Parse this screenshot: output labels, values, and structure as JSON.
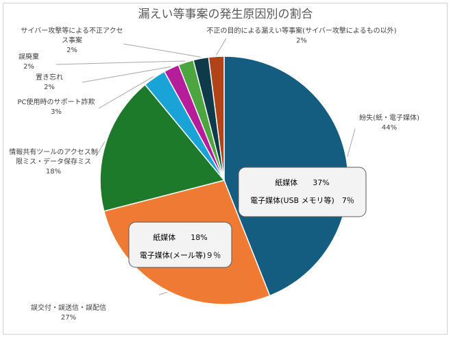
{
  "chart_data": {
    "type": "pie",
    "title": "漏えい等事案の発生原因別の割合",
    "slices": [
      {
        "label": "紛失(紙・電子媒体)",
        "value": 44,
        "value_label": "44%",
        "color": "#155d80"
      },
      {
        "label": "誤交付・誤送信・誤配信",
        "value": 27,
        "value_label": "27%",
        "color": "#ef7a33"
      },
      {
        "label": "情報共有ツールのアクセス制限ミス・データ保存ミス",
        "value": 18,
        "value_label": "18%",
        "color": "#1d7a2a"
      },
      {
        "label": "PC使用時のサポート詐欺",
        "value": 3,
        "value_label": "3%",
        "color": "#1aa3d6"
      },
      {
        "label": "置き忘れ",
        "value": 2,
        "value_label": "2%",
        "color": "#b51d9a"
      },
      {
        "label": "誤廃棄",
        "value": 2,
        "value_label": "2%",
        "color": "#4ca53e"
      },
      {
        "label": "サイバー攻撃等による不正アクセス事案",
        "value": 2,
        "value_label": "2%",
        "color": "#0e3a4a"
      },
      {
        "label": "不正の目的による漏えい等事案(サイバー攻撃によるもの以外)",
        "value": 2,
        "value_label": "2%",
        "color": "#b04318"
      }
    ],
    "callouts": [
      {
        "slice": 0,
        "lines": [
          "紙媒体　　37%",
          "電子媒体(USB メモリ等)　7％"
        ]
      },
      {
        "slice": 1,
        "lines": [
          "紙媒体　　18%",
          "電子媒体(メール等)９％"
        ]
      }
    ],
    "label_lines": [
      [
        "紛失(紙・電子媒体)",
        "44%"
      ],
      [
        "誤交付・誤送信・誤配信",
        "27%"
      ],
      [
        "情報共有ツールのアクセス制",
        "限ミス・データ保存ミス",
        "18%"
      ],
      [
        "PC使用時のサポート詐欺",
        "3%"
      ],
      [
        "置き忘れ",
        "2%"
      ],
      [
        "誤廃棄",
        "2%"
      ],
      [
        "サイバー攻撃等による不正アクセ",
        "ス事案",
        "2%"
      ],
      [
        "不正の目的による漏えい等事案(サイバー攻撃によるもの以外)",
        "2%"
      ]
    ]
  }
}
